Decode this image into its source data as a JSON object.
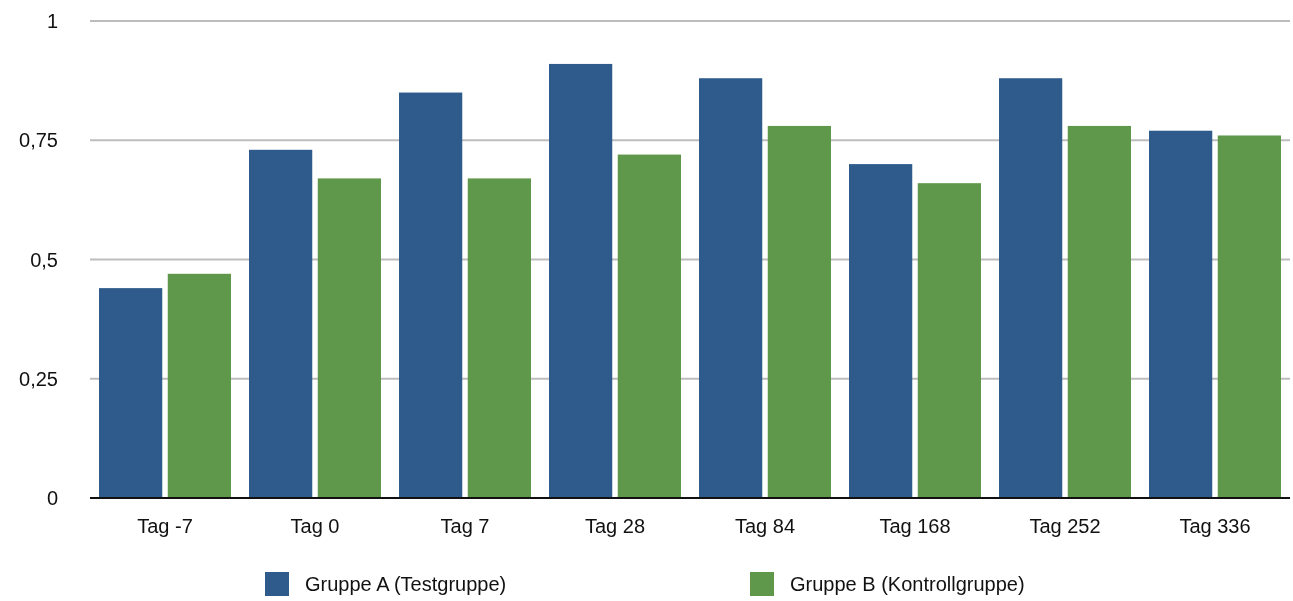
{
  "chart_data": {
    "type": "bar",
    "categories": [
      "Tag -7",
      "Tag 0",
      "Tag 7",
      "Tag 28",
      "Tag 84",
      "Tag 168",
      "Tag 252",
      "Tag 336"
    ],
    "series": [
      {
        "name": "Gruppe A (Testgruppe)",
        "color": "#2f5a8c",
        "values": [
          0.44,
          0.73,
          0.85,
          0.91,
          0.88,
          0.7,
          0.88,
          0.77
        ]
      },
      {
        "name": "Gruppe B (Kontrollgruppe)",
        "color": "#5f984a",
        "values": [
          0.47,
          0.67,
          0.67,
          0.72,
          0.78,
          0.66,
          0.78,
          0.76
        ]
      }
    ],
    "ylim": [
      0,
      1
    ],
    "yticks": [
      0,
      {
        "value": 0.25,
        "label": "0,25"
      },
      {
        "value": 0.5,
        "label": "0,5"
      },
      {
        "value": 0.75,
        "label": "0,75"
      },
      1
    ],
    "grid": "y",
    "legend": "bottom"
  }
}
